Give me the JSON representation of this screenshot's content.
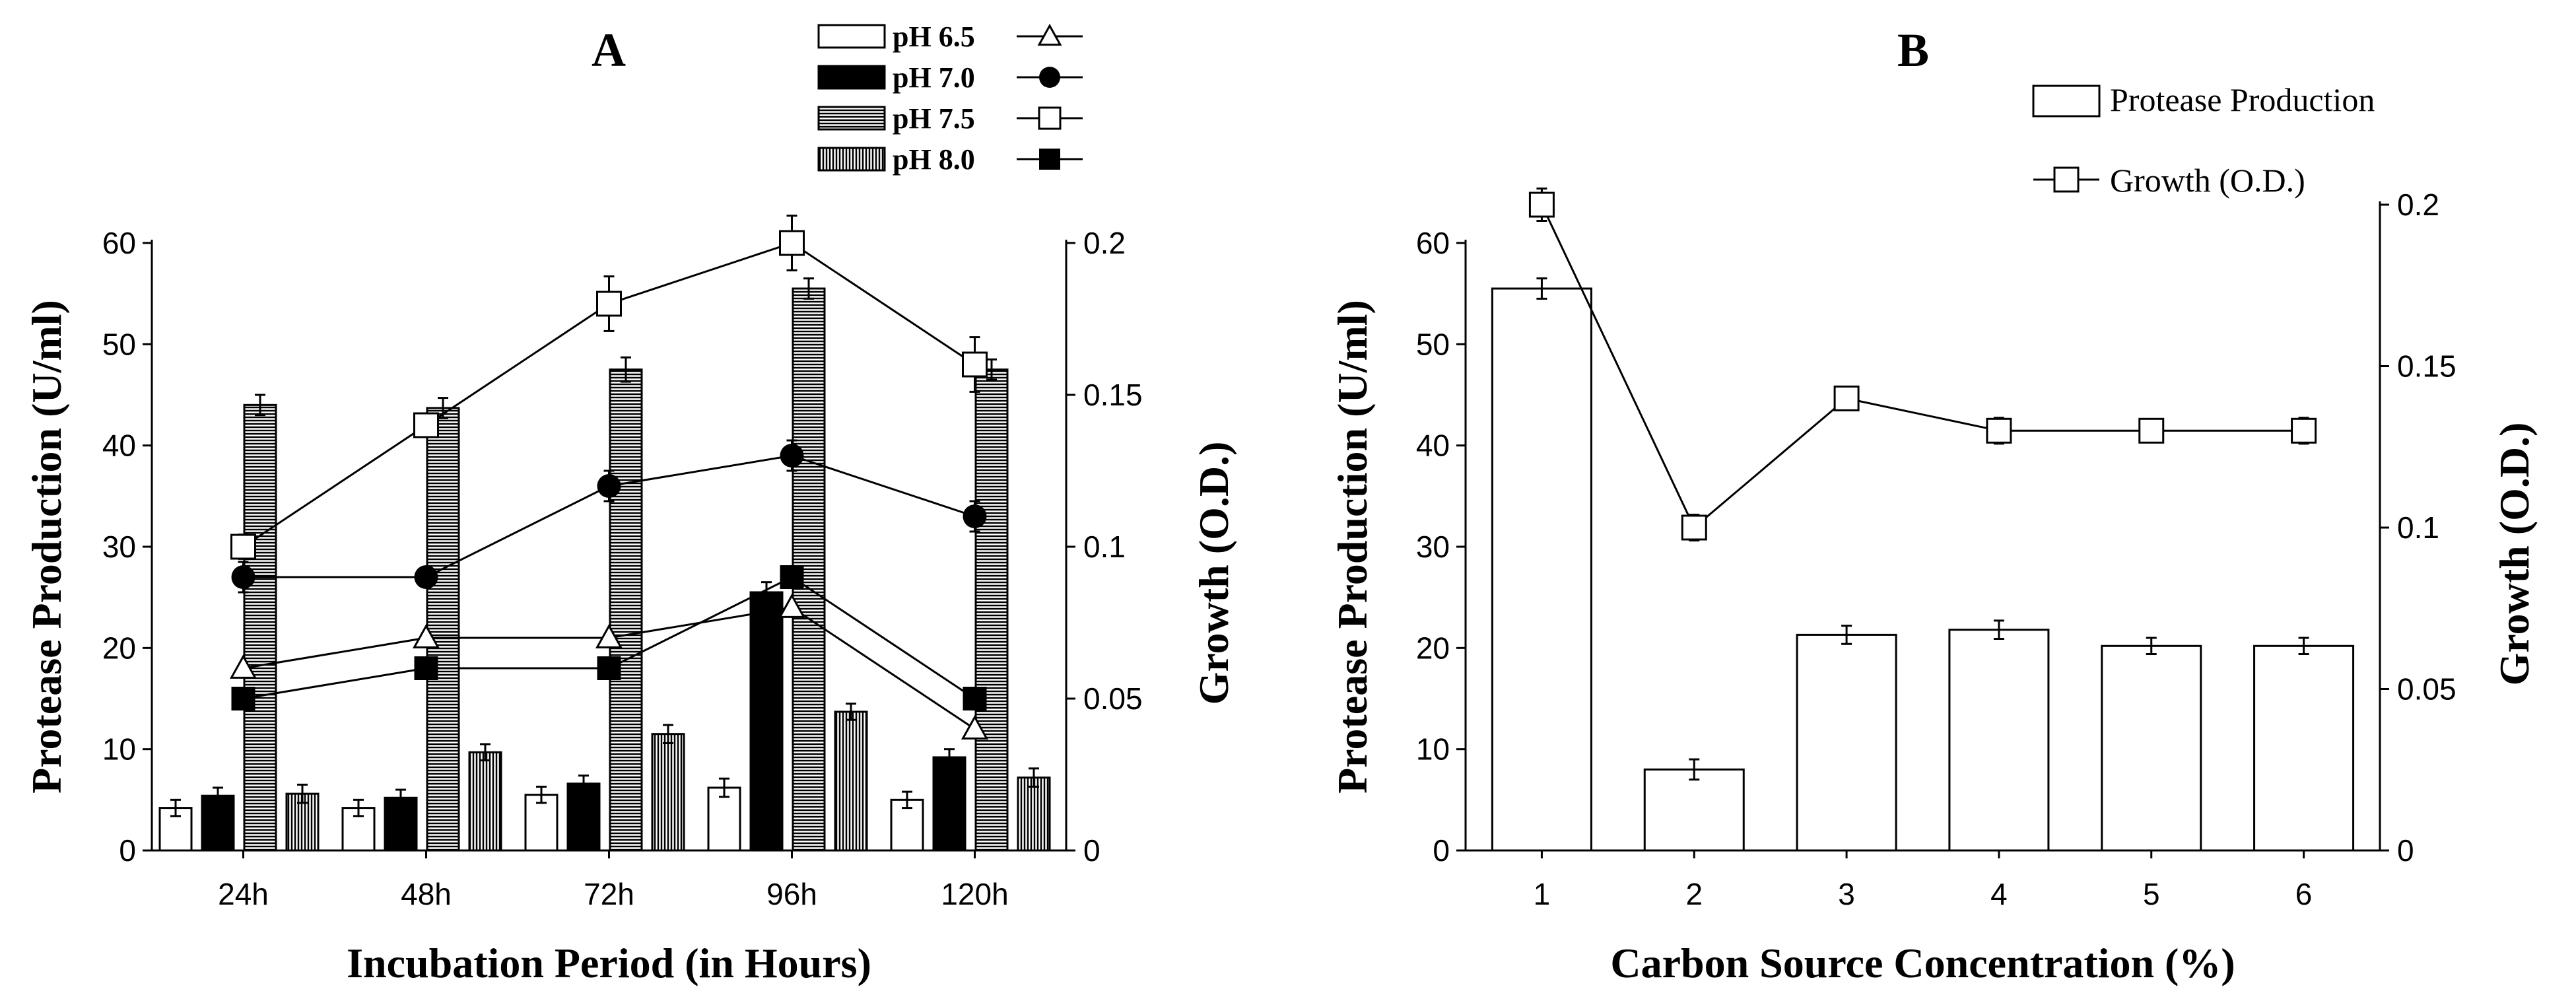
{
  "chart_data": [
    {
      "panel": "A",
      "type": "bar+line",
      "title": "A",
      "xlabel": "Incubation Period (in Hours)",
      "ylabel": "Protease Production (U/ml)",
      "y2label": "Growth (O.D.)",
      "ylim": [
        0,
        60
      ],
      "y2lim": [
        0,
        0.2
      ],
      "yticks": [
        "0",
        "10",
        "20",
        "30",
        "40",
        "50",
        "60"
      ],
      "y2ticks": [
        "0",
        "0.05",
        "0.1",
        "0.15",
        "0.2"
      ],
      "categories": [
        "24h",
        "48h",
        "72h",
        "96h",
        "120h"
      ],
      "bar_series": [
        {
          "name": "pH 6.5",
          "pattern": "white",
          "values": [
            4.2,
            4.2,
            5.5,
            6.2,
            5.0
          ],
          "errors": [
            0.8,
            0.8,
            0.8,
            0.9,
            0.8
          ]
        },
        {
          "name": "pH 7.0",
          "pattern": "black",
          "values": [
            5.4,
            5.2,
            6.6,
            25.5,
            9.2
          ],
          "errors": [
            0.8,
            0.8,
            0.8,
            1.0,
            0.8
          ]
        },
        {
          "name": "pH 7.5",
          "pattern": "horizontal",
          "values": [
            44.0,
            43.7,
            47.5,
            55.5,
            47.5
          ],
          "errors": [
            1.0,
            1.0,
            1.2,
            1.0,
            1.0
          ]
        },
        {
          "name": "pH 8.0",
          "pattern": "vertical",
          "values": [
            5.6,
            9.7,
            11.5,
            13.7,
            7.2
          ],
          "errors": [
            0.9,
            0.8,
            0.9,
            0.8,
            0.9
          ]
        }
      ],
      "line_series": [
        {
          "name": "pH 6.5",
          "marker": "open-triangle",
          "values": [
            0.06,
            0.07,
            0.07,
            0.08,
            0.04
          ]
        },
        {
          "name": "pH 7.0",
          "marker": "filled-circle",
          "values": [
            0.09,
            0.09,
            0.12,
            0.13,
            0.11
          ],
          "errors": [
            0.005,
            0.003,
            0.005,
            0.005,
            0.005
          ]
        },
        {
          "name": "pH 7.5",
          "marker": "open-square",
          "values": [
            0.1,
            0.14,
            0.18,
            0.2,
            0.16
          ],
          "errors": [
            0.004,
            0.003,
            0.009,
            0.009,
            0.009
          ]
        },
        {
          "name": "pH 8.0",
          "marker": "filled-square",
          "values": [
            0.05,
            0.06,
            0.06,
            0.09,
            0.05
          ]
        }
      ],
      "legend": {
        "position": "top-center",
        "entries": [
          "pH 6.5",
          "pH 7.0",
          "pH 7.5",
          "pH 8.0"
        ]
      }
    },
    {
      "panel": "B",
      "type": "bar+line",
      "title": "B",
      "xlabel": "Carbon Source Concentration (%)",
      "ylabel": "Protease Production (U/ml)",
      "y2label": "Growth (O.D.)",
      "ylim": [
        0,
        60
      ],
      "y2lim": [
        0,
        0.2
      ],
      "yticks": [
        "0",
        "10",
        "20",
        "30",
        "40",
        "50",
        "60"
      ],
      "y2ticks": [
        "0",
        "0.05",
        "0.1",
        "0.15",
        "0.2"
      ],
      "categories": [
        "1",
        "2",
        "3",
        "4",
        "5",
        "6"
      ],
      "bar_series": [
        {
          "name": "Protease Production",
          "values": [
            55.5,
            8.0,
            21.3,
            21.8,
            20.2,
            20.2
          ],
          "errors": [
            1.0,
            1.0,
            0.9,
            0.9,
            0.8,
            0.8
          ]
        }
      ],
      "line_series": [
        {
          "name": "Growth (O.D.)",
          "marker": "open-square",
          "values": [
            0.2,
            0.1,
            0.14,
            0.13,
            0.13,
            0.13
          ],
          "errors": [
            0.005,
            0.004,
            0.003,
            0.004,
            0.003,
            0.004
          ]
        }
      ],
      "legend": {
        "position": "top-right",
        "entries": [
          "Protease Production",
          "Growth (O.D.)"
        ]
      }
    }
  ]
}
